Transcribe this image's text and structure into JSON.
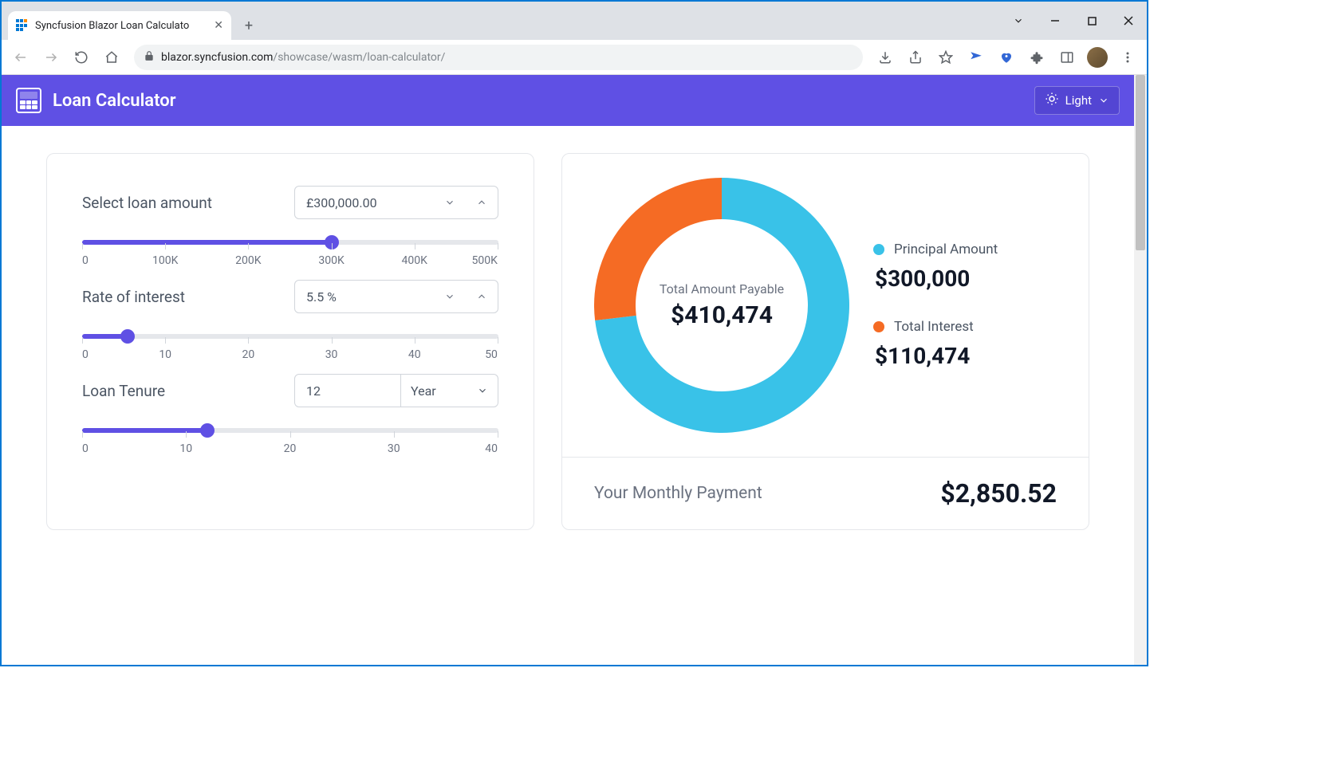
{
  "browser": {
    "tab_title": "Syncfusion Blazor Loan Calculato",
    "url_host": "blazor.syncfusion.com",
    "url_path": "/showcase/wasm/loan-calculator/"
  },
  "header": {
    "title": "Loan Calculator",
    "theme_label": "Light"
  },
  "inputs": {
    "loan_amount": {
      "label": "Select loan amount",
      "value": "£300,000.00",
      "slider_percent": 60,
      "ticks": [
        "0",
        "100K",
        "200K",
        "300K",
        "400K",
        "500K"
      ]
    },
    "rate": {
      "label": "Rate of interest",
      "value": "5.5  %",
      "slider_percent": 11,
      "ticks": [
        "0",
        "10",
        "20",
        "30",
        "40",
        "50"
      ]
    },
    "tenure": {
      "label": "Loan Tenure",
      "value": "12",
      "unit": "Year",
      "slider_percent": 30,
      "ticks": [
        "0",
        "10",
        "20",
        "30",
        "40"
      ]
    }
  },
  "results": {
    "donut": {
      "center_label": "Total Amount Payable",
      "center_value": "$410,474",
      "principal_percent": 73.1,
      "colors": {
        "principal": "#39c2e8",
        "interest": "#f56b24"
      },
      "thickness": 52,
      "radius": 160
    },
    "legend": {
      "principal_label": "Principal Amount",
      "principal_value": "$300,000",
      "interest_label": "Total Interest",
      "interest_value": "$110,474"
    },
    "monthly": {
      "label": "Your Monthly Payment",
      "value": "$2,850.52"
    }
  }
}
